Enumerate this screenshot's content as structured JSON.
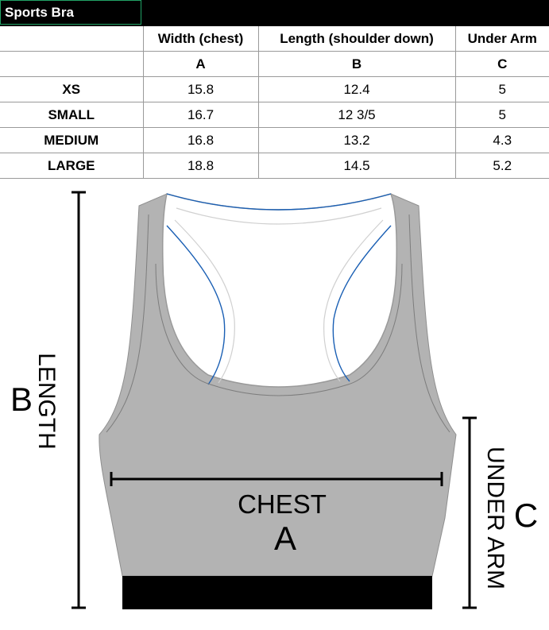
{
  "table": {
    "title": "Sports Bra",
    "headers": [
      "",
      "Width (chest)",
      "Length (shoulder down)",
      "Under Arm"
    ],
    "letters": [
      "",
      "A",
      "B",
      "C"
    ],
    "rows": [
      [
        "XS",
        "15.8",
        "12.4",
        "5"
      ],
      [
        "SMALL",
        "16.7",
        "12 3/5",
        "5"
      ],
      [
        "MEDIUM",
        "16.8",
        "13.2",
        "4.3"
      ],
      [
        "LARGE",
        "18.8",
        "14.5",
        "5.2"
      ]
    ]
  },
  "diagram": {
    "length_letter": "B",
    "length_word": "LENGTH",
    "chest_word": "CHEST",
    "chest_letter": "A",
    "underarm_word": "UNDER ARM",
    "underarm_letter": "C",
    "colors": {
      "garment": "#b3b3b3",
      "trim": "#1a5fb4",
      "band": "#000000"
    }
  }
}
